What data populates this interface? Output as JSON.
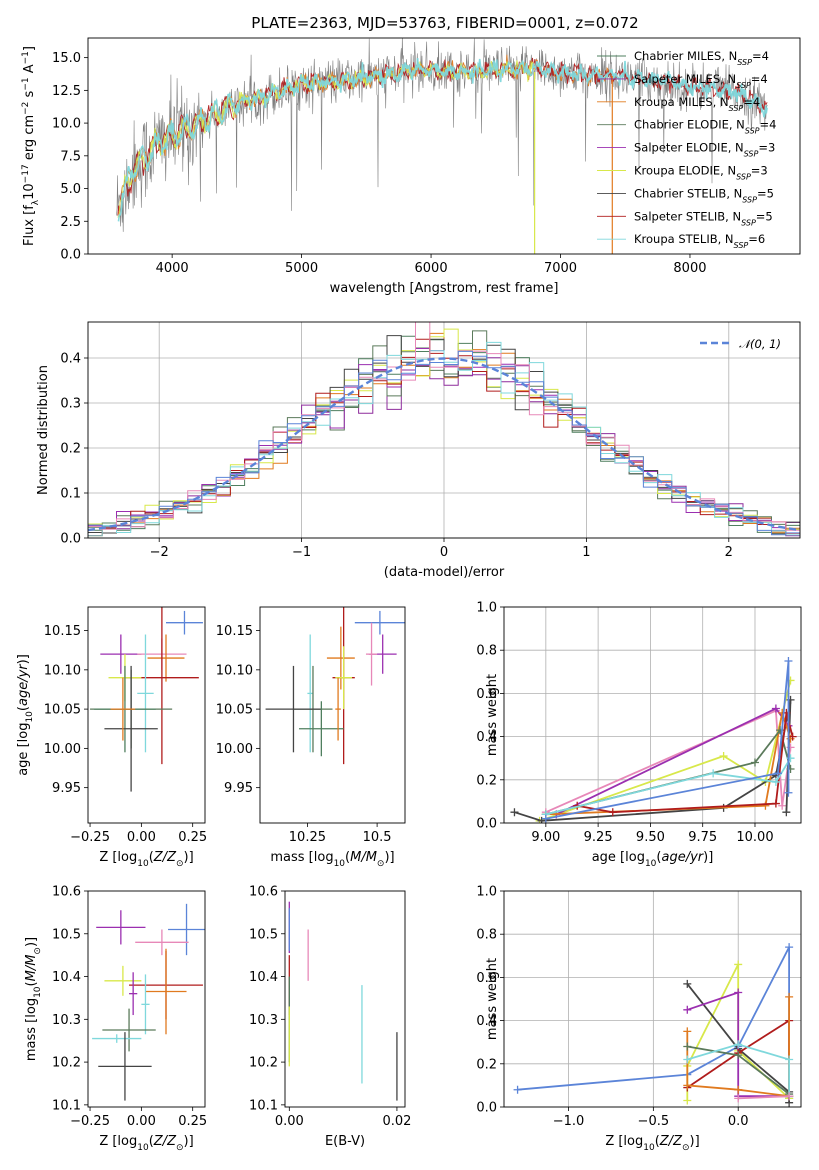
{
  "figure_title": "PLATE=2363, MJD=53763, FIBERID=0001, z=0.072",
  "colors": {
    "chabrier_miles": "#4f7f5f",
    "salpeter_miles": "#8e2c9c",
    "kroupa_miles": "#e07a1f",
    "chabrier_elodie": "#5b7a5b",
    "salpeter_elodie": "#9b2fb0",
    "kroupa_elodie": "#d8e84a",
    "chabrier_stelib": "#444444",
    "salpeter_stelib": "#b01c1c",
    "kroupa_stelib": "#7fd8dc",
    "pink": "#e788b8",
    "blue": "#5b84d8",
    "spectrum": "#7f7f7f"
  },
  "chart_data": [
    {
      "id": "spectrum",
      "type": "line",
      "xlabel": "wavelength [Angstrom, rest frame]",
      "ylabel": "Flux [f_λ 10^-17 erg cm^-2 s^-1 A^-1]",
      "xlim": [
        3350,
        8850
      ],
      "ylim": [
        0,
        16.5
      ],
      "xticks": [
        4000,
        5000,
        6000,
        7000,
        8000
      ],
      "yticks": [
        0.0,
        2.5,
        5.0,
        7.5,
        10.0,
        12.5,
        15.0
      ],
      "legend": [
        {
          "label": "Chabrier MILES, N_SSP=4",
          "color_key": "chabrier_miles"
        },
        {
          "label": "Salpeter MILES, N_SSP=4",
          "color_key": "salpeter_miles"
        },
        {
          "label": "Kroupa MILES, N_SSP=4",
          "color_key": "kroupa_miles"
        },
        {
          "label": "Chabrier ELODIE, N_SSP=4",
          "color_key": "chabrier_elodie"
        },
        {
          "label": "Salpeter ELODIE, N_SSP=3",
          "color_key": "salpeter_elodie"
        },
        {
          "label": "Kroupa ELODIE, N_SSP=3",
          "color_key": "kroupa_elodie"
        },
        {
          "label": "Chabrier STELIB, N_SSP=5",
          "color_key": "chabrier_stelib"
        },
        {
          "label": "Salpeter STELIB, N_SSP=5",
          "color_key": "salpeter_stelib"
        },
        {
          "label": "Kroupa STELIB, N_SSP=6",
          "color_key": "kroupa_stelib"
        }
      ],
      "continuum": [
        [
          3580,
          3.5
        ],
        [
          3700,
          6.5
        ],
        [
          3900,
          8.5
        ],
        [
          4100,
          9.5
        ],
        [
          4300,
          10.5
        ],
        [
          4500,
          11.5
        ],
        [
          4800,
          12.3
        ],
        [
          5000,
          13.0
        ],
        [
          5300,
          13.2
        ],
        [
          5600,
          13.6
        ],
        [
          5900,
          14.1
        ],
        [
          6200,
          13.9
        ],
        [
          6500,
          14.0
        ],
        [
          6800,
          14.2
        ],
        [
          7000,
          13.9
        ],
        [
          7200,
          13.7
        ],
        [
          7400,
          13.6
        ],
        [
          7600,
          13.4
        ],
        [
          7800,
          13.2
        ],
        [
          8000,
          12.8
        ],
        [
          8200,
          12.6
        ],
        [
          8400,
          12.2
        ],
        [
          8600,
          11.0
        ]
      ]
    },
    {
      "id": "residuals",
      "type": "area",
      "xlabel": "(data-model)/error",
      "ylabel": "Normed distribution",
      "xlim": [
        -2.5,
        2.5
      ],
      "ylim": [
        0,
        0.48
      ],
      "xticks": [
        -2,
        -1,
        0,
        1,
        2
      ],
      "yticks": [
        0.0,
        0.1,
        0.2,
        0.3,
        0.4
      ],
      "legend_label": "𝒩(0, 1)",
      "grid": true
    },
    {
      "id": "age_vs_Z",
      "type": "scatter",
      "xlabel": "Z [log10(Z/Z⊙)]",
      "ylabel": "age [log10(age/yr)]",
      "xlim": [
        -0.26,
        0.31
      ],
      "ylim": [
        9.905,
        10.18
      ],
      "xticks": [
        -0.25,
        0.0,
        0.25
      ],
      "xticklabels": [
        "−0.25",
        "0.00",
        "0.25"
      ],
      "yticks": [
        9.95,
        10.0,
        10.05,
        10.1,
        10.15
      ],
      "points": [
        {
          "x": 0.21,
          "y": 10.16,
          "xerr": 0.09,
          "yerr": 0.015,
          "color_key": "blue"
        },
        {
          "x": -0.1,
          "y": 10.12,
          "xerr": 0.1,
          "yerr": 0.025,
          "color_key": "salpeter_elodie"
        },
        {
          "x": 0.1,
          "y": 10.12,
          "xerr": 0.12,
          "yerr": 0.02,
          "color_key": "pink"
        },
        {
          "x": 0.12,
          "y": 10.115,
          "xerr": 0.09,
          "yerr": 0.03,
          "color_key": "kroupa_miles"
        },
        {
          "x": 0.1,
          "y": 10.09,
          "xerr": 0.18,
          "yerr": 0.11,
          "color_key": "salpeter_stelib"
        },
        {
          "x": -0.08,
          "y": 10.09,
          "xerr": 0.08,
          "yerr": 0.03,
          "color_key": "kroupa_elodie"
        },
        {
          "x": 0.02,
          "y": 10.07,
          "xerr": 0.04,
          "yerr": 0.075,
          "color_key": "kroupa_stelib"
        },
        {
          "x": -0.05,
          "y": 10.05,
          "xerr": 0.2,
          "yerr": 0.05,
          "color_key": "chabrier_elodie"
        },
        {
          "x": -0.08,
          "y": 10.05,
          "xerr": 0.15,
          "yerr": 0.055,
          "color_key": "chabrier_miles"
        },
        {
          "x": -0.05,
          "y": 10.025,
          "xerr": 0.13,
          "yerr": 0.08,
          "color_key": "chabrier_stelib"
        },
        {
          "x": -0.09,
          "y": 10.05,
          "xerr": 0.06,
          "yerr": 0.04,
          "color_key": "kroupa_miles"
        }
      ]
    },
    {
      "id": "age_vs_mass",
      "type": "scatter",
      "xlabel": "mass [log10(M/M⊙)]",
      "ylabel": "",
      "xlim": [
        10.08,
        10.6
      ],
      "ylim": [
        9.905,
        10.18
      ],
      "xticks": [
        10.25,
        10.5
      ],
      "yticks": [
        9.95,
        10.0,
        10.05,
        10.1,
        10.15
      ],
      "points": [
        {
          "x": 10.51,
          "y": 10.16,
          "xerr": 0.09,
          "yerr": 0.015,
          "color_key": "blue"
        },
        {
          "x": 10.52,
          "y": 10.12,
          "xerr": 0.05,
          "yerr": 0.025,
          "color_key": "salpeter_elodie"
        },
        {
          "x": 10.48,
          "y": 10.12,
          "xerr": 0.02,
          "yerr": 0.04,
          "color_key": "pink"
        },
        {
          "x": 10.37,
          "y": 10.115,
          "xerr": 0.05,
          "yerr": 0.04,
          "color_key": "kroupa_miles"
        },
        {
          "x": 10.38,
          "y": 10.09,
          "xerr": 0.04,
          "yerr": 0.11,
          "color_key": "salpeter_stelib"
        },
        {
          "x": 10.38,
          "y": 10.09,
          "xerr": 0.03,
          "yerr": 0.04,
          "color_key": "kroupa_elodie"
        },
        {
          "x": 10.26,
          "y": 10.07,
          "xerr": 0.01,
          "yerr": 0.075,
          "color_key": "kroupa_stelib"
        },
        {
          "x": 10.27,
          "y": 10.05,
          "xerr": 0.07,
          "yerr": 0.055,
          "color_key": "chabrier_elodie"
        },
        {
          "x": 10.2,
          "y": 10.05,
          "xerr": 0.1,
          "yerr": 0.055,
          "color_key": "chabrier_stelib"
        },
        {
          "x": 10.3,
          "y": 10.025,
          "xerr": 0.08,
          "yerr": 0.035,
          "color_key": "chabrier_miles"
        },
        {
          "x": 10.36,
          "y": 10.05,
          "xerr": 0.01,
          "yerr": 0.04,
          "color_key": "kroupa_miles"
        }
      ]
    },
    {
      "id": "massweight_vs_age",
      "type": "line",
      "xlabel": "age  [log10(age/yr)]",
      "ylabel": "mass weight",
      "xlim": [
        8.8,
        10.22
      ],
      "ylim": [
        0.0,
        1.0
      ],
      "xticks": [
        9.0,
        9.25,
        9.5,
        9.75,
        10.0
      ],
      "xticklabels": [
        "9.00",
        "9.25",
        "9.50",
        "9.75",
        "10.00"
      ],
      "yticks": [
        0.0,
        0.2,
        0.4,
        0.6,
        0.8,
        1.0
      ],
      "grid": true,
      "series": [
        {
          "color_key": "pink",
          "points": [
            [
              9.0,
              0.05
            ],
            [
              10.1,
              0.52
            ],
            [
              10.13,
              0.08
            ],
            [
              10.17,
              0.35
            ]
          ]
        },
        {
          "color_key": "kroupa_elodie",
          "points": [
            [
              8.97,
              0.01
            ],
            [
              9.85,
              0.31
            ],
            [
              10.05,
              0.19
            ],
            [
              10.17,
              0.66
            ]
          ]
        },
        {
          "color_key": "chabrier_stelib",
          "points": [
            [
              8.85,
              0.05
            ],
            [
              8.98,
              0.01
            ],
            [
              9.85,
              0.07
            ],
            [
              10.1,
              0.22
            ],
            [
              10.17,
              0.57
            ],
            [
              10.15,
              0.05
            ]
          ]
        },
        {
          "color_key": "salpeter_elodie",
          "points": [
            [
              9.05,
              0.04
            ],
            [
              10.1,
              0.53
            ],
            [
              10.16,
              0.45
            ]
          ]
        },
        {
          "color_key": "kroupa_miles",
          "points": [
            [
              9.0,
              0.04
            ],
            [
              10.05,
              0.08
            ],
            [
              10.13,
              0.51
            ],
            [
              10.17,
              0.39
            ]
          ]
        },
        {
          "color_key": "chabrier_elodie",
          "points": [
            [
              9.0,
              0.04
            ],
            [
              10.0,
              0.28
            ],
            [
              10.12,
              0.43
            ],
            [
              10.17,
              0.25
            ]
          ]
        },
        {
          "color_key": "salpeter_stelib",
          "points": [
            [
              9.15,
              0.08
            ],
            [
              9.32,
              0.05
            ],
            [
              10.1,
              0.09
            ],
            [
              10.15,
              0.51
            ],
            [
              10.18,
              0.4
            ]
          ]
        },
        {
          "color_key": "kroupa_stelib",
          "points": [
            [
              9.0,
              0.04
            ],
            [
              9.8,
              0.23
            ],
            [
              10.1,
              0.19
            ],
            [
              10.17,
              0.3
            ]
          ]
        },
        {
          "color_key": "blue",
          "points": [
            [
              9.0,
              0.02
            ],
            [
              10.11,
              0.23
            ],
            [
              10.16,
              0.75
            ],
            [
              10.16,
              0.14
            ]
          ]
        }
      ]
    },
    {
      "id": "mass_vs_Z",
      "type": "scatter",
      "xlabel": "Z [log10(Z/Z⊙)]",
      "ylabel": "mass [log10(M/M⊙)]",
      "xlim": [
        -0.26,
        0.31
      ],
      "ylim": [
        10.095,
        10.6
      ],
      "xticks": [
        -0.25,
        0.0,
        0.25
      ],
      "xticklabels": [
        "−0.25",
        "0.00",
        "0.25"
      ],
      "yticks": [
        10.1,
        10.2,
        10.3,
        10.4,
        10.5,
        10.6
      ],
      "points": [
        {
          "x": -0.1,
          "y": 10.515,
          "xerr": 0.12,
          "yerr": 0.04,
          "color_key": "salpeter_elodie"
        },
        {
          "x": 0.22,
          "y": 10.51,
          "xerr": 0.09,
          "yerr": 0.06,
          "color_key": "blue"
        },
        {
          "x": 0.1,
          "y": 10.48,
          "xerr": 0.13,
          "yerr": 0.03,
          "color_key": "pink"
        },
        {
          "x": -0.09,
          "y": 10.39,
          "xerr": 0.09,
          "yerr": 0.035,
          "color_key": "kroupa_elodie"
        },
        {
          "x": 0.12,
          "y": 10.38,
          "xerr": 0.18,
          "yerr": 0.08,
          "color_key": "salpeter_stelib"
        },
        {
          "x": 0.12,
          "y": 10.365,
          "xerr": 0.1,
          "yerr": 0.1,
          "color_key": "kroupa_miles"
        },
        {
          "x": 0.02,
          "y": 10.335,
          "xerr": 0.02,
          "yerr": 0.07,
          "color_key": "kroupa_stelib"
        },
        {
          "x": -0.06,
          "y": 10.275,
          "xerr": 0.13,
          "yerr": 0.05,
          "color_key": "chabrier_elodie"
        },
        {
          "x": -0.12,
          "y": 10.255,
          "xerr": 0.12,
          "yerr": 0.01,
          "color_key": "kroupa_stelib"
        },
        {
          "x": -0.08,
          "y": 10.19,
          "xerr": 0.13,
          "yerr": 0.08,
          "color_key": "chabrier_stelib"
        },
        {
          "x": -0.04,
          "y": 10.36,
          "xerr": 0.02,
          "yerr": 0.05,
          "color_key": "salpeter_elodie"
        }
      ]
    },
    {
      "id": "mass_vs_ebv",
      "type": "scatter",
      "xlabel": "E(B-V)",
      "ylabel": "",
      "xlim": [
        -0.0008,
        0.0215
      ],
      "ylim": [
        10.095,
        10.6
      ],
      "xticks": [
        0.0,
        0.02
      ],
      "xticklabels": [
        "0.00",
        "0.02"
      ],
      "yticks": [
        10.1,
        10.2,
        10.3,
        10.4,
        10.5,
        10.6
      ],
      "points": [
        {
          "x": 0.0,
          "y": 10.515,
          "xerr": 0,
          "yerr": 0.06,
          "color_key": "salpeter_elodie"
        },
        {
          "x": 0.0,
          "y": 10.51,
          "xerr": 0,
          "yerr": 0.05,
          "color_key": "blue"
        },
        {
          "x": 0.0035,
          "y": 10.45,
          "xerr": 0,
          "yerr": 0.06,
          "color_key": "pink"
        },
        {
          "x": 0.0,
          "y": 10.38,
          "xerr": 0,
          "yerr": 0.07,
          "color_key": "salpeter_stelib"
        },
        {
          "x": 0.0,
          "y": 10.3,
          "xerr": 0,
          "yerr": 0.1,
          "color_key": "chabrier_miles"
        },
        {
          "x": 0.0,
          "y": 10.26,
          "xerr": 0,
          "yerr": 0.07,
          "color_key": "kroupa_elodie"
        },
        {
          "x": 0.0135,
          "y": 10.265,
          "xerr": 0,
          "yerr": 0.115,
          "color_key": "kroupa_stelib"
        },
        {
          "x": 0.02,
          "y": 10.19,
          "xerr": 0,
          "yerr": 0.08,
          "color_key": "chabrier_stelib"
        }
      ]
    },
    {
      "id": "massweight_vs_Z",
      "type": "line",
      "xlabel": "Z [log10(Z/Z⊙)]",
      "ylabel": "mass weight",
      "xlim": [
        -1.38,
        0.37
      ],
      "ylim": [
        0.0,
        1.0
      ],
      "xticks": [
        -1.0,
        -0.5,
        0.0
      ],
      "xticklabels": [
        "−1.0",
        "−0.5",
        "0.0"
      ],
      "yticks": [
        0.0,
        0.2,
        0.4,
        0.6,
        0.8,
        1.0
      ],
      "grid": true,
      "series": [
        {
          "color_key": "blue",
          "points": [
            [
              -1.3,
              0.08
            ],
            [
              -0.3,
              0.15
            ],
            [
              0.0,
              0.28
            ],
            [
              0.3,
              0.74
            ],
            [
              0.3,
              0.04
            ]
          ]
        },
        {
          "color_key": "kroupa_elodie",
          "points": [
            [
              -0.3,
              0.03
            ],
            [
              -0.3,
              0.19
            ],
            [
              0.0,
              0.66
            ],
            [
              0.0,
              0.26
            ],
            [
              0.3,
              0.04
            ]
          ]
        },
        {
          "color_key": "chabrier_stelib",
          "points": [
            [
              -0.3,
              0.57
            ],
            [
              0.0,
              0.27
            ],
            [
              0.3,
              0.07
            ],
            [
              0.3,
              0.02
            ]
          ]
        },
        {
          "color_key": "salpeter_elodie",
          "points": [
            [
              -0.3,
              0.45
            ],
            [
              0.0,
              0.53
            ],
            [
              0.0,
              0.05
            ],
            [
              0.3,
              0.05
            ]
          ]
        },
        {
          "color_key": "salpeter_stelib",
          "points": [
            [
              -0.3,
              0.09
            ],
            [
              0.0,
              0.25
            ],
            [
              0.3,
              0.4
            ],
            [
              0.3,
              0.05
            ]
          ]
        },
        {
          "color_key": "kroupa_miles",
          "points": [
            [
              -0.3,
              0.35
            ],
            [
              -0.3,
              0.1
            ],
            [
              0.0,
              0.08
            ],
            [
              0.3,
              0.05
            ],
            [
              0.3,
              0.51
            ]
          ]
        },
        {
          "color_key": "chabrier_elodie",
          "points": [
            [
              -0.3,
              0.28
            ],
            [
              0.0,
              0.24
            ],
            [
              0.3,
              0.06
            ]
          ]
        },
        {
          "color_key": "kroupa_stelib",
          "points": [
            [
              -0.3,
              0.22
            ],
            [
              0.0,
              0.29
            ],
            [
              0.3,
              0.22
            ],
            [
              0.3,
              0.05
            ]
          ]
        },
        {
          "color_key": "pink",
          "points": [
            [
              0.0,
              0.04
            ],
            [
              0.3,
              0.05
            ]
          ]
        }
      ]
    }
  ]
}
